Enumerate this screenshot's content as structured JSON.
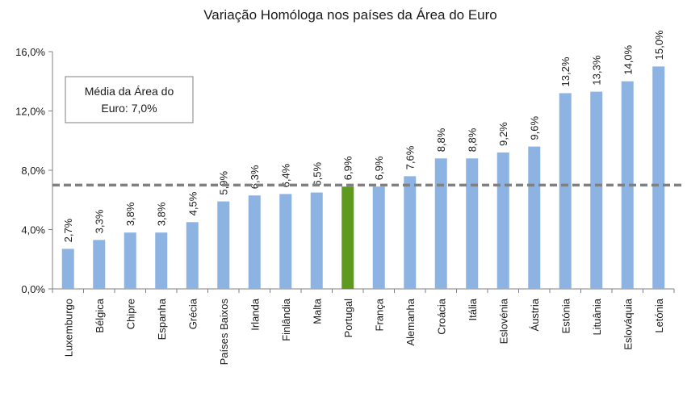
{
  "chart_data": {
    "type": "bar",
    "title": "Variação Homóloga nos países da Área do Euro",
    "xlabel": "",
    "ylabel": "",
    "ylim": [
      0,
      16
    ],
    "yticks": [
      "0,0%",
      "4,0%",
      "8,0%",
      "12,0%",
      "16,0%"
    ],
    "ytick_values": [
      0,
      4,
      8,
      12,
      16
    ],
    "categories": [
      "Luxemburgo",
      "Bélgica",
      "Chipre",
      "Espanha",
      "Grécia",
      "Países Baixos",
      "Irlanda",
      "Finlândia",
      "Malta",
      "Portugal",
      "França",
      "Alemanha",
      "Croácia",
      "Itália",
      "Eslovénia",
      "Áustria",
      "Estónia",
      "Lituânia",
      "Eslováquia",
      "Letónia"
    ],
    "values": [
      2.7,
      3.3,
      3.8,
      3.8,
      4.5,
      5.9,
      6.3,
      6.4,
      6.5,
      6.9,
      6.9,
      7.6,
      8.8,
      8.8,
      9.2,
      9.6,
      13.2,
      13.3,
      14.0,
      15.0
    ],
    "value_labels": [
      "2,7%",
      "3,3%",
      "3,8%",
      "3,8%",
      "4,5%",
      "5,9%",
      "6,3%",
      "6,4%",
      "6,5%",
      "6,9%",
      "6,9%",
      "7,6%",
      "8,8%",
      "8,8%",
      "9,2%",
      "9,6%",
      "13,2%",
      "13,3%",
      "14,0%",
      "15,0%"
    ],
    "highlight_category": "Portugal",
    "reference_line": {
      "value": 7.0,
      "style": "dashed"
    },
    "annotation": {
      "line1": "Média da Área do",
      "line2": "Euro: 7,0%"
    },
    "colors": {
      "bar": "#8db3e2",
      "highlight": "#5e9a1e",
      "reference_line": "#808080",
      "axis": "#808080"
    },
    "grid": false,
    "legend": "none"
  }
}
